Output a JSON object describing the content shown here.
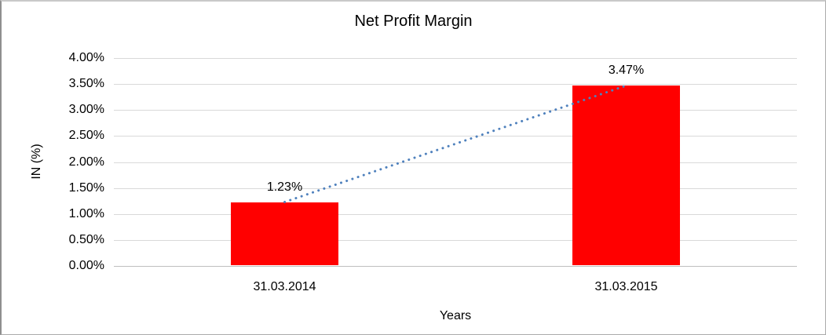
{
  "chart_data": {
    "type": "bar",
    "title": "Net Profit Margin",
    "xlabel": "Years",
    "ylabel": "IN (%)",
    "categories": [
      "31.03.2014",
      "31.03.2015"
    ],
    "values": [
      1.23,
      3.47
    ],
    "data_labels": [
      "1.23%",
      "3.47%"
    ],
    "yticks": [
      "4.00%",
      "3.50%",
      "3.00%",
      "2.50%",
      "2.00%",
      "1.50%",
      "1.00%",
      "0.50%",
      "0.00%"
    ],
    "ylim": [
      0,
      4
    ],
    "ytick_step": 0.5,
    "grid": true,
    "legend": false,
    "bar_color": "#ff0000",
    "gridline_color": "#d9d9d9",
    "trendline": {
      "type": "linear",
      "style": "dotted",
      "color": "#4f81bd",
      "from_value": 1.23,
      "to_value": 3.47
    }
  }
}
